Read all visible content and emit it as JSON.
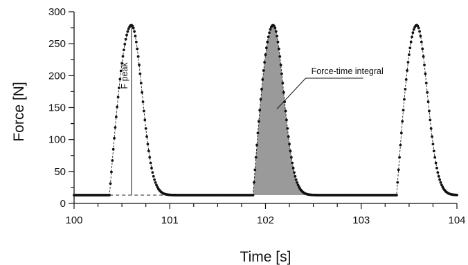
{
  "chart_data": {
    "type": "scatter",
    "xlabel": "Time [s]",
    "ylabel": "Force [N]",
    "xlim": [
      100,
      104
    ],
    "ylim": [
      0,
      300
    ],
    "x_ticks": [
      100,
      101,
      102,
      103,
      104
    ],
    "y_ticks": [
      0,
      50,
      100,
      150,
      200,
      250,
      300
    ],
    "x_minor_step": 0.25,
    "y_minor_step": 25,
    "grid": false,
    "baseline": 13,
    "cycles": [
      {
        "onset": 100.37,
        "peak_time": 100.6,
        "peak": 279,
        "end": 100.95
      },
      {
        "onset": 101.87,
        "peak_time": 102.08,
        "peak": 279,
        "end": 102.45
      },
      {
        "onset": 103.37,
        "peak_time": 103.58,
        "peak": 279,
        "end": 103.95
      }
    ],
    "series": [
      {
        "x": [
          100.0,
          100.36,
          100.37,
          100.4,
          100.45,
          100.5,
          100.55,
          100.6,
          100.65,
          100.7,
          100.75,
          100.8,
          100.85,
          100.9,
          100.95,
          101.0,
          101.86,
          101.87,
          101.9,
          101.95,
          102.0,
          102.05,
          102.08,
          102.13,
          102.18,
          102.23,
          102.28,
          102.33,
          102.38,
          102.45,
          102.5,
          103.36,
          103.37,
          103.4,
          103.45,
          103.5,
          103.55,
          103.58,
          103.63,
          103.68,
          103.73,
          103.78,
          103.83,
          103.88,
          103.95,
          104.0
        ],
        "y": [
          14,
          14,
          20,
          95,
          175,
          240,
          272,
          279,
          255,
          190,
          105,
          45,
          22,
          15,
          14,
          14,
          14,
          20,
          105,
          200,
          262,
          278,
          279,
          245,
          175,
          100,
          48,
          24,
          16,
          14,
          14,
          14,
          20,
          105,
          200,
          262,
          278,
          279,
          245,
          175,
          100,
          48,
          24,
          16,
          14,
          14
        ]
      }
    ],
    "annotations": [
      {
        "text": "F peak"
      },
      {
        "text": "Force-time integral"
      }
    ]
  }
}
